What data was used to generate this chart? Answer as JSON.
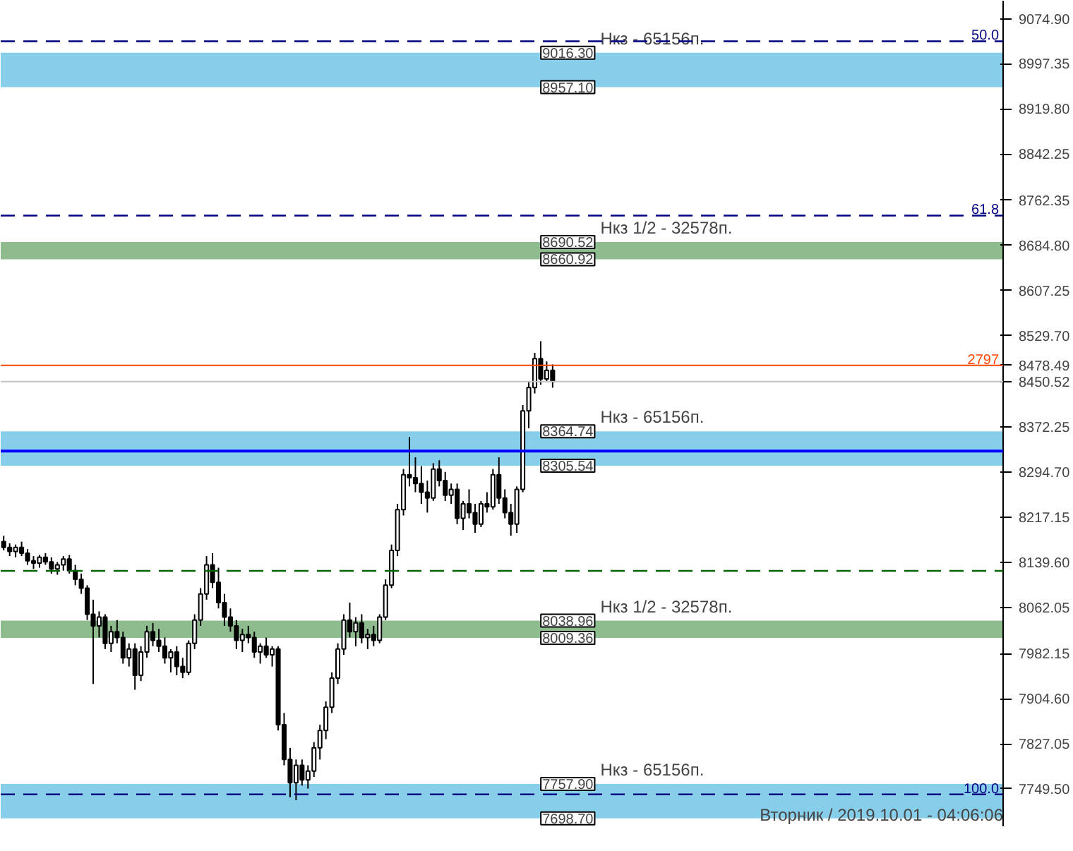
{
  "chart_data": {
    "type": "candlestick",
    "categories": [
      null,
      null,
      null,
      null,
      null,
      null,
      null,
      null,
      null,
      null,
      null,
      null,
      null,
      null,
      null,
      null,
      null,
      null,
      null,
      null,
      null,
      null,
      null,
      null,
      null,
      null,
      null,
      null,
      null,
      null,
      null,
      null,
      null,
      null,
      null,
      null,
      null,
      null,
      null,
      null,
      null,
      null,
      null,
      null,
      null,
      null,
      null,
      null,
      null,
      null,
      null,
      null,
      null,
      null,
      null,
      null,
      null,
      null,
      null,
      null,
      null,
      null,
      null,
      null,
      null,
      null,
      null,
      null,
      null,
      null,
      null,
      null,
      null,
      null,
      null,
      null,
      null,
      null,
      null,
      null,
      null,
      null,
      null,
      null,
      null,
      null,
      null,
      null,
      null,
      null,
      null,
      null,
      null,
      null,
      null,
      null,
      null,
      null,
      null,
      null,
      null,
      null,
      null,
      null,
      null,
      null,
      null,
      null,
      null,
      null,
      null,
      null,
      null,
      null,
      null,
      null,
      null,
      null,
      null,
      null,
      null,
      null,
      null,
      null,
      null,
      null,
      null,
      null,
      null,
      null,
      null,
      null,
      null,
      null,
      null,
      null,
      null,
      null,
      null,
      null,
      null,
      null,
      null,
      null,
      null,
      null,
      null,
      null,
      null,
      null,
      null,
      null,
      null,
      null,
      null,
      null,
      null,
      null,
      null,
      null,
      null,
      null,
      null,
      null,
      null,
      null,
      null,
      null
    ],
    "ohlc": [
      [
        8175,
        8185,
        8160,
        8165
      ],
      [
        8165,
        8172,
        8150,
        8158
      ],
      [
        8158,
        8170,
        8148,
        8165
      ],
      [
        8165,
        8175,
        8150,
        8155
      ],
      [
        8155,
        8162,
        8135,
        8142
      ],
      [
        8142,
        8150,
        8128,
        8138
      ],
      [
        8138,
        8152,
        8130,
        8148
      ],
      [
        8148,
        8155,
        8135,
        8140
      ],
      [
        8140,
        8148,
        8120,
        8128
      ],
      [
        8128,
        8140,
        8118,
        8135
      ],
      [
        8135,
        8150,
        8125,
        8145
      ],
      [
        8145,
        8152,
        8120,
        8125
      ],
      [
        8125,
        8135,
        8100,
        8110
      ],
      [
        8110,
        8120,
        8085,
        8095
      ],
      [
        8095,
        8100,
        8040,
        8050
      ],
      [
        8050,
        8075,
        7930,
        8030
      ],
      [
        8030,
        8055,
        8010,
        8045
      ],
      [
        8045,
        8050,
        7990,
        8000
      ],
      [
        8000,
        8030,
        7985,
        8020
      ],
      [
        8020,
        8040,
        8000,
        8010
      ],
      [
        8010,
        8020,
        7965,
        7975
      ],
      [
        7975,
        8000,
        7960,
        7990
      ],
      [
        7990,
        8000,
        7920,
        7945
      ],
      [
        7945,
        7995,
        7935,
        7985
      ],
      [
        7985,
        8030,
        7975,
        8020
      ],
      [
        8020,
        8035,
        7995,
        8005
      ],
      [
        8005,
        8025,
        7985,
        7995
      ],
      [
        7995,
        8010,
        7965,
        7975
      ],
      [
        7975,
        7990,
        7950,
        7985
      ],
      [
        7985,
        7995,
        7945,
        7960
      ],
      [
        7960,
        7975,
        7940,
        7950
      ],
      [
        7950,
        8005,
        7945,
        8000
      ],
      [
        8000,
        8050,
        7990,
        8040
      ],
      [
        8040,
        8095,
        8030,
        8085
      ],
      [
        8085,
        8150,
        8075,
        8135
      ],
      [
        8135,
        8155,
        8095,
        8105
      ],
      [
        8105,
        8130,
        8060,
        8070
      ],
      [
        8070,
        8085,
        8030,
        8045
      ],
      [
        8045,
        8060,
        8020,
        8030
      ],
      [
        8030,
        8040,
        7990,
        8005
      ],
      [
        8005,
        8025,
        7985,
        8015
      ],
      [
        8015,
        8030,
        8000,
        8010
      ],
      [
        8010,
        8020,
        7975,
        7985
      ],
      [
        7985,
        8000,
        7965,
        7995
      ],
      [
        7995,
        8010,
        7975,
        7980
      ],
      [
        7980,
        7995,
        7960,
        7990
      ],
      [
        7990,
        7995,
        7850,
        7860
      ],
      [
        7860,
        7880,
        7790,
        7800
      ],
      [
        7800,
        7820,
        7735,
        7760
      ],
      [
        7760,
        7800,
        7730,
        7790
      ],
      [
        7790,
        7800,
        7755,
        7765
      ],
      [
        7765,
        7790,
        7750,
        7780
      ],
      [
        7780,
        7830,
        7770,
        7820
      ],
      [
        7820,
        7860,
        7800,
        7850
      ],
      [
        7850,
        7900,
        7835,
        7890
      ],
      [
        7890,
        7950,
        7880,
        7940
      ],
      [
        7940,
        8000,
        7930,
        7990
      ],
      [
        7990,
        8050,
        7980,
        8040
      ],
      [
        8040,
        8070,
        8010,
        8020
      ],
      [
        8020,
        8045,
        7995,
        8035
      ],
      [
        8035,
        8050,
        8000,
        8010
      ],
      [
        8010,
        8025,
        7990,
        8015
      ],
      [
        8015,
        8030,
        7995,
        8005
      ],
      [
        8005,
        8050,
        8000,
        8045
      ],
      [
        8045,
        8110,
        8040,
        8100
      ],
      [
        8100,
        8170,
        8095,
        8160
      ],
      [
        8160,
        8240,
        8150,
        8230
      ],
      [
        8230,
        8300,
        8220,
        8290
      ],
      [
        8290,
        8355,
        8270,
        8285
      ],
      [
        8285,
        8320,
        8260,
        8275
      ],
      [
        8275,
        8305,
        8240,
        8260
      ],
      [
        8260,
        8280,
        8225,
        8250
      ],
      [
        8250,
        8310,
        8245,
        8300
      ],
      [
        8300,
        8315,
        8270,
        8280
      ],
      [
        8280,
        8295,
        8245,
        8255
      ],
      [
        8255,
        8275,
        8240,
        8265
      ],
      [
        8265,
        8275,
        8205,
        8215
      ],
      [
        8215,
        8245,
        8195,
        8240
      ],
      [
        8240,
        8265,
        8215,
        8225
      ],
      [
        8225,
        8240,
        8190,
        8205
      ],
      [
        8205,
        8245,
        8200,
        8240
      ],
      [
        8240,
        8260,
        8225,
        8235
      ],
      [
        8235,
        8300,
        8230,
        8290
      ],
      [
        8290,
        8320,
        8240,
        8250
      ],
      [
        8250,
        8265,
        8215,
        8225
      ],
      [
        8225,
        8240,
        8185,
        8205
      ],
      [
        8205,
        8270,
        8190,
        8265
      ],
      [
        8265,
        8410,
        8260,
        8400
      ],
      [
        8400,
        8450,
        8370,
        8440
      ],
      [
        8440,
        8500,
        8430,
        8490
      ],
      [
        8490,
        8520,
        8445,
        8455
      ],
      [
        8455,
        8485,
        8450,
        8470
      ],
      [
        8470,
        8480,
        8440,
        8450.52
      ],
      null,
      null,
      null,
      null,
      null,
      null,
      null,
      null,
      null,
      null,
      null,
      null,
      null,
      null,
      null,
      null,
      null,
      null,
      null,
      null,
      null,
      null,
      null,
      null,
      null,
      null,
      null,
      null,
      null,
      null,
      null,
      null,
      null,
      null,
      null,
      null,
      null,
      null,
      null,
      null,
      null,
      null,
      null,
      null,
      null,
      null,
      null,
      null,
      null,
      null,
      null,
      null,
      null,
      null,
      null,
      null,
      null,
      null,
      null,
      null,
      null,
      null,
      null,
      null,
      null,
      null,
      null,
      null,
      null,
      null,
      null,
      null,
      null,
      null,
      null
    ],
    "ylim": [
      7685,
      9106
    ],
    "yticks": [
      {
        "value": 9074.9,
        "label": "9074.90"
      },
      8997.35,
      {
        "value": 8919.8,
        "label": "8919.80"
      },
      8842.25,
      8762.35,
      {
        "value": 8684.8,
        "label": "8684.80"
      },
      8607.25,
      {
        "value": 8529.7,
        "label": "8529.70"
      },
      8478.49,
      8450.52,
      8372.25,
      {
        "value": 8294.7,
        "label": "8294.70"
      },
      8217.15,
      {
        "value": 8139.6,
        "label": "8139.60"
      },
      8062.05,
      7982.15,
      {
        "value": 7904.6,
        "label": "7904.60"
      },
      7827.05,
      {
        "value": 7749.5,
        "label": "7749.50"
      }
    ],
    "tick_labels": "y",
    "grid": false,
    "bands": [
      {
        "axis": "y",
        "from": 8957.1,
        "to": 9016.3,
        "label": "Нкз - 65156п.",
        "color": "#87ceeb"
      },
      {
        "axis": "y",
        "from": 8660.92,
        "to": 8690.52,
        "label": "Нкз 1/2 - 32578п.",
        "color": "#8fbc8f"
      },
      {
        "axis": "y",
        "from": 8305.54,
        "to": 8364.74,
        "label": "Нкз - 65156п.",
        "color": "#87ceeb"
      },
      {
        "axis": "y",
        "from": 8009.36,
        "to": 8038.96,
        "label": "Нкз 1/2 - 32578п.",
        "color": "#8fbc8f"
      },
      {
        "axis": "y",
        "from": 7698.7,
        "to": 7757.9,
        "label": "Нкз - 65156п.",
        "color": "#87ceeb"
      }
    ],
    "ref_lines": [
      {
        "axis": "y",
        "value": 9036.2,
        "label": null,
        "color": "#000080",
        "line_style": "dashed"
      },
      {
        "axis": "y",
        "value": 8736.2,
        "label": null,
        "color": "#000080",
        "line_style": "dashed"
      },
      {
        "axis": "y",
        "value": 7740,
        "label": null,
        "color": "#000080",
        "line_style": "dashed"
      },
      {
        "axis": "y",
        "value": 8478.49,
        "label": null,
        "color": "#ff4500",
        "line_style": "solid"
      },
      {
        "axis": "y",
        "value": 8450.52,
        "label": null,
        "color": "#c0c0c0",
        "line_style": "solid"
      },
      {
        "axis": "y",
        "value": 8330.7,
        "label": null,
        "color": "#0000ff",
        "line_style": "solid"
      },
      {
        "axis": "y",
        "value": 8124.6,
        "label": null,
        "color": "#006400",
        "line_style": "dashed"
      }
    ],
    "annotations": [
      {
        "text": "50.0",
        "y": 9036.2
      },
      {
        "text": "61.8",
        "y": 8736.2
      },
      {
        "text": "100.0",
        "y": 7740
      },
      {
        "text": "2797",
        "y": 8478.49
      },
      {
        "text": "9016.30",
        "y": 9016.3
      },
      {
        "text": "8957.10",
        "y": 8957.1
      },
      {
        "text": "8690.52",
        "y": 8690.52
      },
      {
        "text": "8660.92",
        "y": 8660.92
      },
      {
        "text": "8364.74",
        "y": 8364.74
      },
      {
        "text": "8305.54",
        "y": 8305.54
      },
      {
        "text": "8038.96",
        "y": 8038.96
      },
      {
        "text": "8009.36",
        "y": 8009.36
      },
      {
        "text": "7757.90",
        "y": 7757.9
      },
      {
        "text": "7698.70",
        "y": 7698.7
      },
      "Вторник / 2019.10.01 - 04:06:06"
    ]
  }
}
